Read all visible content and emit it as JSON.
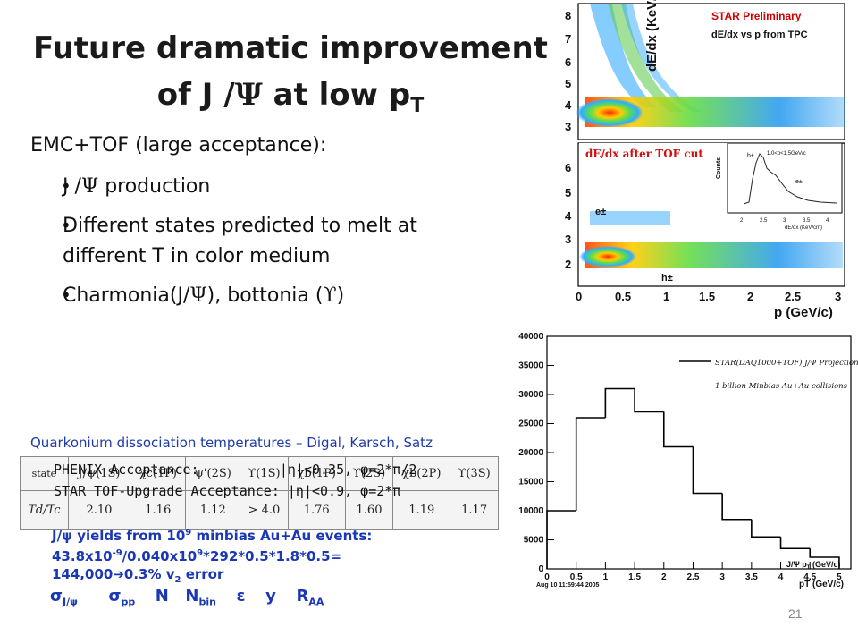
{
  "slide": {
    "title_line1": "Future dramatic improvement",
    "title_line2_prefix": "of J /",
    "title_line2_psi": "Ψ",
    "title_line2_mid": " at low p",
    "title_line2_sub": "T",
    "subtitle": "EMC+TOF (large acceptance):",
    "bullets": [
      {
        "a": "J /",
        "b": "Ψ",
        "c": " production"
      },
      {
        "a": "Different states predicted to melt at",
        "b": "",
        "c": ""
      },
      {
        "a": "different T in color medium",
        "b": "",
        "c": ""
      },
      {
        "a": "Charmonia(J/",
        "b": "Ψ",
        "c": "), bottonia (",
        "d": "ϒ",
        "e": ")"
      }
    ],
    "quarkonium_caption": "Quarkonium dissociation temperatures – Digal, Karsch, Satz",
    "phenix_line": "PHENIX Acceptance:          |η|<0.35, φ=2*π/2",
    "star_line": "STAR TOF-Upgrade Acceptance: |η|<0.9, φ=2*π",
    "yields_line1": "J/ψ yields from 10",
    "yields_line1_sup": "9",
    "yields_line1_end": " minbias Au+Au events:",
    "yields_line2": "43.8x10",
    "yields_line2_sup": "-9",
    "yields_line2_mid": "/0.040x10",
    "yields_line2_sup2": "9",
    "yields_line2_end": "*292*0.5*1.8*0.5=",
    "yields_line3": "144,000➔0.3% v",
    "yields_line3_sub": "2",
    "yields_line3_end": " error",
    "formula": {
      "sigma_jpsi": "σ",
      "sigma_jpsi_sub": "J/ψ",
      "sigma_pp": "σ",
      "sigma_pp_sub": "pp",
      "n": "N",
      "nbin": "N",
      "nbin_sub": "bin",
      "eps": "ε",
      "y": "y",
      "raa": "R",
      "raa_sub": "AA"
    },
    "page_number": "21"
  },
  "table": {
    "header": [
      "state",
      "J/ψ(1S)",
      "χc(1P)",
      "ψ'(2S)",
      "ϒ(1S)",
      "χb(1P)",
      "ϒ(2S)",
      "χb(2P)",
      "ϒ(3S)"
    ],
    "row_label": "Td/Tc",
    "values": [
      "2.10",
      "1.16",
      "1.12",
      "> 4.0",
      "1.76",
      "1.60",
      "1.19",
      "1.17"
    ]
  },
  "tpc_plot": {
    "star_label": "STAR Preliminary",
    "desc_label": "dE/dx vs p from TPC",
    "ylabel": "dE/dx (KeV/cm)",
    "xlabel": "p (GeV/c)",
    "after_cut_label": "dE/dx after TOF cut",
    "e_label": "e±",
    "h_label": "h±",
    "y_ticks_top": [
      "3",
      "4",
      "5",
      "6",
      "7",
      "8"
    ],
    "y_ticks_bottom": [
      "2",
      "3",
      "4",
      "5",
      "6"
    ],
    "x_ticks": [
      "0",
      "0.5",
      "1",
      "1.5",
      "2",
      "2.5",
      "3"
    ],
    "inset": {
      "ylabel": "Counts",
      "xlabel": "dE/dx (KeV/cm)",
      "x_ticks": [
        "2",
        "2.5",
        "3",
        "3.5",
        "4"
      ],
      "legend": "1.0<p<1.5GeV/c",
      "h_label": "h±",
      "e_label": "e±"
    }
  },
  "hist_plot": {
    "legend1": "STAR(DAQ1000+TOF) J/Ψ Projection",
    "legend2": "1 billion Minbias Au+Au collisions",
    "xlabel": "pT (GeV/c)",
    "xlabel2": "J/Ψ p",
    "xlabel2_sub": "T",
    "xlabel2_end": " (GeV/c)",
    "y_ticks": [
      "0",
      "5000",
      "10000",
      "15000",
      "20000",
      "25000",
      "30000",
      "35000",
      "40000"
    ],
    "x_ticks": [
      "0",
      "0.5",
      "1",
      "1.5",
      "2",
      "2.5",
      "3",
      "3.5",
      "4",
      "4.5",
      "5"
    ],
    "timestamp": "Aug 10 11:59:44 2005"
  },
  "chart_data": {
    "type": "bar",
    "title": "",
    "xlabel": "pT (GeV/c)",
    "ylabel": "",
    "xlim": [
      0,
      5.2
    ],
    "ylim": [
      0,
      40000
    ],
    "bin_edges": [
      0,
      0.5,
      1.0,
      1.5,
      2.0,
      2.5,
      3.0,
      3.5,
      4.0,
      4.5,
      5.0
    ],
    "values": [
      10000,
      26000,
      31000,
      27000,
      21000,
      13000,
      8500,
      5500,
      3500,
      2000
    ],
    "series": [
      {
        "name": "STAR(DAQ1000+TOF) J/Ψ Projection",
        "values": [
          10000,
          26000,
          31000,
          27000,
          21000,
          13000,
          8500,
          5500,
          3500,
          2000
        ]
      }
    ]
  }
}
